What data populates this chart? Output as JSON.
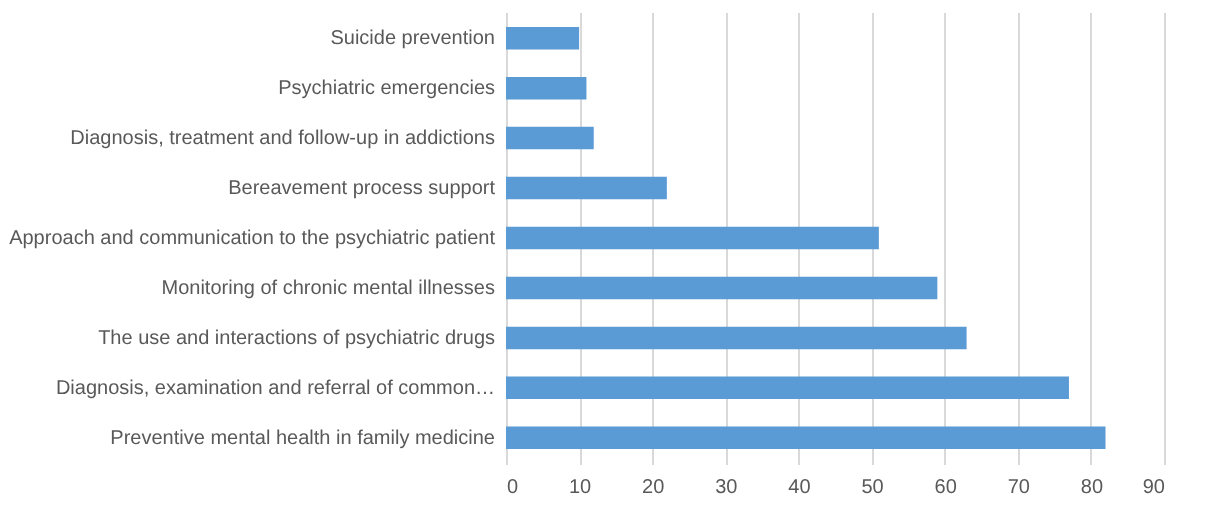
{
  "chart_data": {
    "type": "bar",
    "orientation": "horizontal",
    "categories": [
      "Suicide prevention",
      "Psychiatric emergencies",
      "Diagnosis, treatment and follow-up in addictions",
      "Bereavement process support",
      "Approach and communication to the psychiatric patient",
      "Monitoring of chronic mental illnesses",
      "The use and interactions of psychiatric drugs",
      "Diagnosis, examination and referral of common…",
      "Preventive mental health in family medicine"
    ],
    "values": [
      10,
      11,
      12,
      22,
      51,
      59,
      63,
      77,
      82
    ],
    "color": "#5b9bd5",
    "xlim": [
      0,
      90
    ],
    "xticks": [
      0,
      10,
      20,
      30,
      40,
      50,
      60,
      70,
      80,
      90
    ],
    "grid": "x"
  }
}
